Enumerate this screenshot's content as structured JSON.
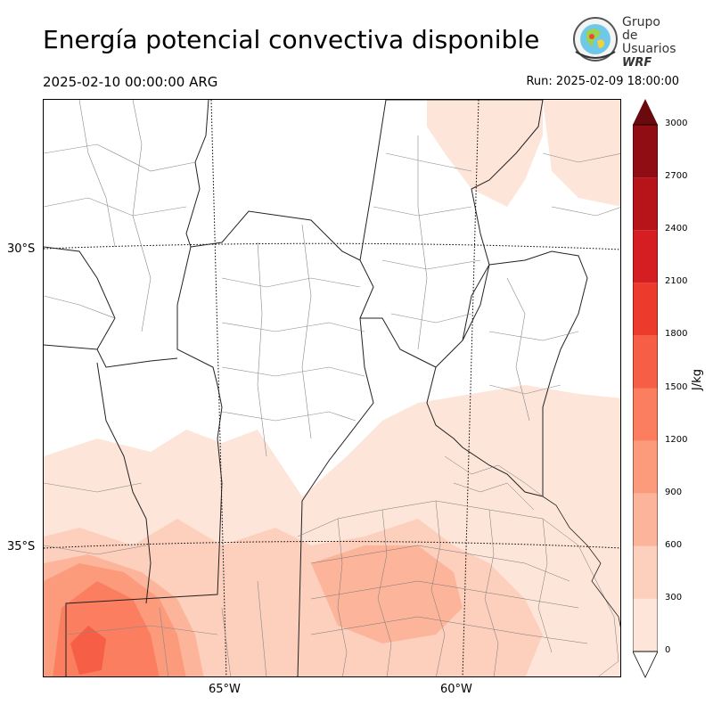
{
  "header": {
    "title": "Energía potencial convectiva disponible",
    "valid_time": "2025-02-10 00:00:00 ARG",
    "run_time": "Run: 2025-02-09 18:00:00"
  },
  "logo": {
    "line1": "Grupo de",
    "line2": "Usuarios",
    "line3": "WRF"
  },
  "map": {
    "lat_labels": [
      "30°S",
      "35°S"
    ],
    "lon_labels": [
      "65°W",
      "60°W"
    ]
  },
  "colorbar": {
    "unit": "J/kg",
    "ticks": [
      "0",
      "300",
      "600",
      "900",
      "1200",
      "1500",
      "1800",
      "2100",
      "2400",
      "2700",
      "3000"
    ],
    "colors": [
      "#fee5d9",
      "#fcd0bd",
      "#fcb59a",
      "#fc9a7c",
      "#fb7e60",
      "#f65e46",
      "#ec3a2d",
      "#d41e21",
      "#b61419",
      "#8f0d13",
      "#6b0a0e"
    ]
  }
}
